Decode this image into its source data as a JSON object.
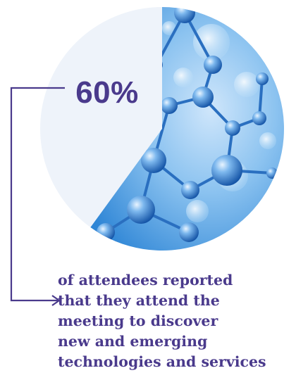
{
  "chart_data": {
    "type": "pie",
    "slices": [
      {
        "value": 60,
        "color": "#5aa8e6"
      },
      {
        "value": 40,
        "color": "#eef3fa"
      }
    ],
    "highlight_label": "60%"
  },
  "caption": {
    "lines": [
      "of attendees reported",
      "that they attend the",
      "meeting to discover",
      "new and emerging",
      "technologies and services"
    ]
  },
  "colors": {
    "accent": "#4a3a8c",
    "slice_light": "#eef3fa",
    "slice_blue": "#5aa8e6"
  }
}
